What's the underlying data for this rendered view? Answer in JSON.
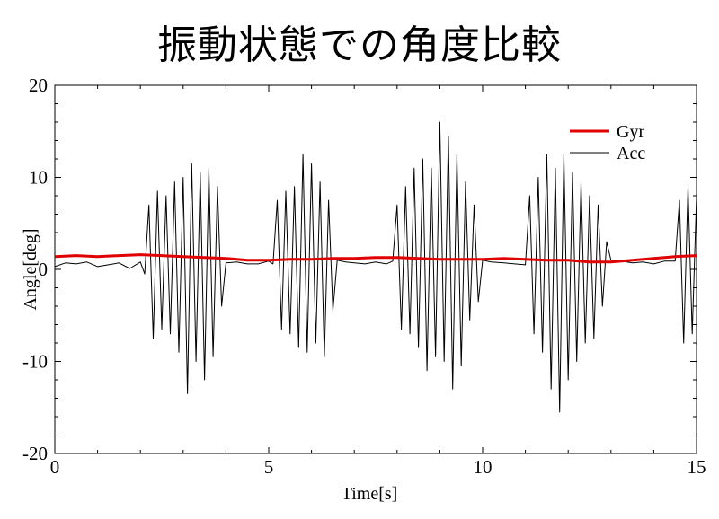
{
  "chart_data": {
    "type": "line",
    "title": "振動状態での角度比較",
    "xlabel": "Time[s]",
    "ylabel": "Angle[deg]",
    "xlim": [
      0,
      15
    ],
    "ylim": [
      -20,
      20
    ],
    "xticks": [
      "0",
      "5",
      "10",
      "15"
    ],
    "yticks": [
      "20",
      "10",
      "0",
      "-10",
      "-20"
    ],
    "grid": false,
    "legend_position": "top-right",
    "series": [
      {
        "name": "Gyr",
        "color": "#e00000",
        "x": [
          0,
          0.5,
          1,
          1.5,
          2,
          2.5,
          3,
          3.5,
          4,
          4.5,
          5,
          5.5,
          6,
          6.5,
          7,
          7.5,
          8,
          8.5,
          9,
          9.5,
          10,
          10.5,
          11,
          11.5,
          12,
          12.5,
          13,
          13.5,
          14,
          14.5,
          15
        ],
        "values": [
          1.4,
          1.5,
          1.4,
          1.5,
          1.6,
          1.5,
          1.4,
          1.3,
          1.2,
          1.0,
          1.0,
          1.1,
          1.1,
          1.2,
          1.2,
          1.3,
          1.3,
          1.2,
          1.1,
          1.1,
          1.1,
          1.2,
          1.1,
          1.0,
          1.0,
          0.8,
          0.8,
          1.0,
          1.2,
          1.4,
          1.5
        ]
      },
      {
        "name": "Acc",
        "color": "#000000",
        "x": [
          0,
          0.25,
          0.5,
          0.75,
          1,
          1.25,
          1.5,
          1.75,
          2,
          2.1,
          2.2,
          2.3,
          2.4,
          2.5,
          2.6,
          2.7,
          2.8,
          2.9,
          3.0,
          3.1,
          3.2,
          3.3,
          3.4,
          3.5,
          3.6,
          3.7,
          3.8,
          3.9,
          4.0,
          4.25,
          4.5,
          4.75,
          5.0,
          5.1,
          5.2,
          5.3,
          5.4,
          5.5,
          5.6,
          5.7,
          5.8,
          5.9,
          6.0,
          6.1,
          6.2,
          6.3,
          6.4,
          6.5,
          6.6,
          6.8,
          7.0,
          7.25,
          7.5,
          7.75,
          7.9,
          8.0,
          8.1,
          8.2,
          8.3,
          8.4,
          8.5,
          8.6,
          8.7,
          8.8,
          8.9,
          9.0,
          9.1,
          9.2,
          9.3,
          9.4,
          9.5,
          9.6,
          9.7,
          9.8,
          9.9,
          10.0,
          10.2,
          10.5,
          10.75,
          11.0,
          11.1,
          11.2,
          11.3,
          11.4,
          11.5,
          11.6,
          11.7,
          11.8,
          11.9,
          12.0,
          12.1,
          12.2,
          12.3,
          12.4,
          12.5,
          12.6,
          12.7,
          12.8,
          12.9,
          13.0,
          13.25,
          13.5,
          13.75,
          14.0,
          14.25,
          14.5,
          14.6,
          14.7,
          14.8,
          14.9,
          15.0
        ],
        "values": [
          0.3,
          0.7,
          0.6,
          0.8,
          0.3,
          0.5,
          0.7,
          0.1,
          0.8,
          -0.5,
          7.0,
          -7.5,
          8.5,
          -6.5,
          8.0,
          -7.0,
          9.5,
          -9.0,
          10.0,
          -13.5,
          11.5,
          -10.0,
          10.5,
          -12.0,
          11.0,
          -9.5,
          9.0,
          -4.0,
          0.7,
          0.8,
          0.6,
          0.6,
          0.9,
          0.6,
          7.5,
          -6.5,
          8.5,
          -7.0,
          9.0,
          -8.5,
          12.5,
          -9.0,
          11.5,
          -8.0,
          9.5,
          -9.5,
          7.5,
          -4.5,
          1.0,
          0.8,
          0.7,
          0.6,
          0.8,
          0.6,
          0.9,
          7.0,
          -6.5,
          9.0,
          -7.0,
          11.0,
          -8.5,
          12.0,
          -11.0,
          11.0,
          -9.5,
          16.0,
          -10.0,
          14.5,
          -13.0,
          12.5,
          -10.5,
          9.5,
          -5.5,
          7.0,
          -3.5,
          1.0,
          0.8,
          0.7,
          0.6,
          0.5,
          8.0,
          -7.0,
          10.0,
          -9.0,
          12.5,
          -13.0,
          11.0,
          -15.5,
          12.5,
          -12.0,
          10.5,
          -10.0,
          9.5,
          -8.0,
          8.0,
          -7.5,
          7.0,
          -4.0,
          3.0,
          1.0,
          0.9,
          0.7,
          0.8,
          0.6,
          0.9,
          0.9,
          7.5,
          -8.0,
          9.0,
          -7.0,
          8.0
        ]
      }
    ]
  }
}
